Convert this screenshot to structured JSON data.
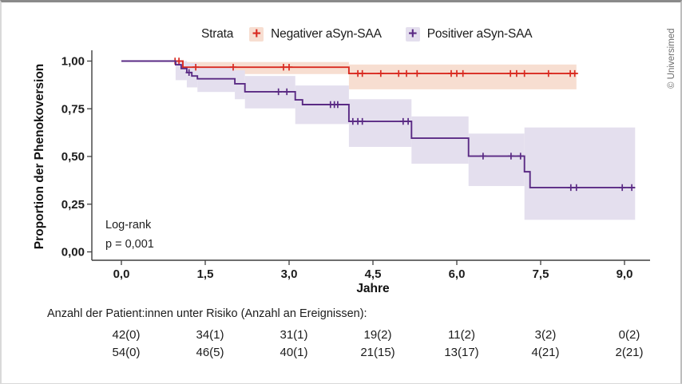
{
  "copyright": "© Universimed",
  "legend": {
    "title": "Strata",
    "items": [
      {
        "label": "Negativer aSyn-SAA",
        "color": "#d92b21",
        "band_color": "#f7ded1"
      },
      {
        "label": "Positiver aSyn-SAA",
        "color": "#5a2a84",
        "band_color": "#e4dfee"
      }
    ]
  },
  "annotation": {
    "line1": "Log-rank",
    "line2": "p = 0,001"
  },
  "chart_data": {
    "type": "line",
    "subtype": "kaplan-meier-step",
    "title": "",
    "xlabel": "Jahre",
    "ylabel": "Proportion der Phenokoversion",
    "xlim": [
      0,
      9.4
    ],
    "ylim": [
      0,
      1.05
    ],
    "grid": false,
    "legend_position": "top",
    "xticks": [
      {
        "t": 0.0,
        "label": "0,0"
      },
      {
        "t": 1.5,
        "label": "1,5"
      },
      {
        "t": 3.0,
        "label": "3,0"
      },
      {
        "t": 4.5,
        "label": "4,5"
      },
      {
        "t": 6.0,
        "label": "6,0"
      },
      {
        "t": 7.5,
        "label": "7,5"
      },
      {
        "t": 9.0,
        "label": "9,0"
      }
    ],
    "yticks": [
      {
        "v": 1.0,
        "label": "1,00"
      },
      {
        "v": 0.75,
        "label": "0,75"
      },
      {
        "v": 0.5,
        "label": "0,50"
      },
      {
        "v": 0.25,
        "label": "0,25"
      },
      {
        "v": 0.0,
        "label": "0,00"
      }
    ],
    "series": [
      {
        "name": "Negativer aSyn-SAA",
        "color": "#d92b21",
        "band_color": "#f7ded1",
        "end_t": 8.14,
        "steps": [
          [
            0,
            1.0
          ],
          [
            1.1,
            0.968
          ],
          [
            4.07,
            0.935
          ]
        ],
        "censors": [
          [
            0.96,
            1.0
          ],
          [
            1.03,
            1.0
          ],
          [
            1.33,
            0.968
          ],
          [
            2.0,
            0.968
          ],
          [
            2.9,
            0.968
          ],
          [
            3.0,
            0.968
          ],
          [
            4.23,
            0.935
          ],
          [
            4.31,
            0.935
          ],
          [
            4.64,
            0.935
          ],
          [
            4.96,
            0.935
          ],
          [
            5.1,
            0.935
          ],
          [
            5.29,
            0.935
          ],
          [
            5.9,
            0.935
          ],
          [
            6.0,
            0.935
          ],
          [
            6.11,
            0.935
          ],
          [
            6.96,
            0.935
          ],
          [
            7.07,
            0.935
          ],
          [
            7.21,
            0.935
          ],
          [
            7.64,
            0.935
          ],
          [
            8.03,
            0.935
          ],
          [
            8.11,
            0.935
          ]
        ],
        "band": [
          [
            1.11,
            4.07,
            0.995,
            0.932
          ],
          [
            4.07,
            8.14,
            0.982,
            0.852
          ]
        ]
      },
      {
        "name": "Positiver aSyn-SAA",
        "color": "#5a2a84",
        "band_color": "#e4dfee",
        "end_t": 9.19,
        "steps": [
          [
            0,
            1.0
          ],
          [
            0.97,
            0.981
          ],
          [
            1.07,
            0.961
          ],
          [
            1.17,
            0.94
          ],
          [
            1.26,
            0.922
          ],
          [
            1.36,
            0.907
          ],
          [
            2.03,
            0.881
          ],
          [
            2.21,
            0.839
          ],
          [
            3.11,
            0.797
          ],
          [
            3.24,
            0.772
          ],
          [
            4.07,
            0.684
          ],
          [
            5.19,
            0.596
          ],
          [
            6.21,
            0.502
          ],
          [
            7.21,
            0.42
          ],
          [
            7.31,
            0.337
          ]
        ],
        "censors": [
          [
            1.21,
            0.94
          ],
          [
            2.81,
            0.839
          ],
          [
            2.96,
            0.839
          ],
          [
            3.74,
            0.772
          ],
          [
            3.81,
            0.772
          ],
          [
            3.87,
            0.772
          ],
          [
            4.14,
            0.684
          ],
          [
            4.23,
            0.684
          ],
          [
            4.31,
            0.684
          ],
          [
            5.04,
            0.684
          ],
          [
            5.13,
            0.684
          ],
          [
            6.47,
            0.502
          ],
          [
            6.97,
            0.502
          ],
          [
            7.14,
            0.502
          ],
          [
            8.04,
            0.337
          ],
          [
            8.14,
            0.337
          ],
          [
            8.96,
            0.337
          ],
          [
            9.13,
            0.337
          ]
        ],
        "band": [
          [
            0.97,
            1.17,
            1.0,
            0.9
          ],
          [
            1.17,
            1.36,
            0.99,
            0.862
          ],
          [
            1.36,
            2.03,
            0.972,
            0.838
          ],
          [
            2.03,
            2.21,
            0.952,
            0.8
          ],
          [
            2.21,
            3.11,
            0.922,
            0.752
          ],
          [
            3.11,
            4.07,
            0.872,
            0.67
          ],
          [
            4.07,
            5.19,
            0.8,
            0.55
          ],
          [
            5.19,
            6.21,
            0.71,
            0.462
          ],
          [
            6.21,
            7.21,
            0.62,
            0.345
          ],
          [
            7.21,
            9.19,
            0.652,
            0.168
          ]
        ]
      }
    ]
  },
  "risk_table": {
    "title": "Anzahl der Patient:innen unter Risiko (Anzahl an Ereignissen):",
    "times": [
      0.0,
      1.5,
      3.0,
      4.5,
      6.0,
      7.5,
      9.0
    ],
    "rows": [
      {
        "name": "Negativer aSyn-SAA",
        "values": [
          "42(0)",
          "34(1)",
          "31(1)",
          "19(2)",
          "11(2)",
          "3(2)",
          "0(2)"
        ]
      },
      {
        "name": "Positiver aSyn-SAA",
        "values": [
          "54(0)",
          "46(5)",
          "40(1)",
          "21(15)",
          "13(17)",
          "4(21)",
          "2(21)"
        ]
      }
    ]
  }
}
